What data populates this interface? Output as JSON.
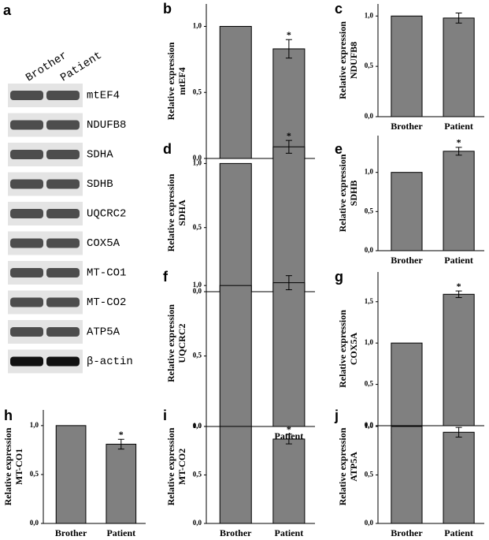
{
  "panel_a": {
    "label": "a",
    "lanes": [
      "Brother",
      "Patient"
    ],
    "bands": [
      "mtEF4",
      "NDUFB8",
      "SDHA",
      "SDHB",
      "UQCRC2",
      "COX5A",
      "MT-CO1",
      "MT-CO2",
      "ATP5A",
      "β-actin"
    ]
  },
  "chart_data": [
    {
      "type": "bar",
      "panel": "b",
      "ylabel": [
        "Relative expression",
        "mtEF4"
      ],
      "categories": [
        "Brother",
        "Patient"
      ],
      "values": [
        1.0,
        0.83
      ],
      "errors": [
        null,
        0.07
      ],
      "annotations": [
        null,
        "*"
      ],
      "color": "#808080",
      "ylim": [
        0,
        1.17
      ],
      "yticks": [
        {
          "value": 0,
          "label": "0,0"
        },
        {
          "value": 0.5,
          "label": "0,5"
        },
        {
          "value": 1,
          "label": "1,0"
        }
      ]
    },
    {
      "type": "bar",
      "panel": "c",
      "ylabel": [
        "Relative expression",
        "NDUFB8"
      ],
      "categories": [
        "Brother",
        "Patient"
      ],
      "values": [
        1.0,
        0.98
      ],
      "errors": [
        null,
        0.05
      ],
      "color": "#808080",
      "ylim": [
        0,
        1.12
      ],
      "yticks": [
        {
          "value": 0,
          "label": "0,0"
        },
        {
          "value": 0.5,
          "label": "0,5"
        },
        {
          "value": 1,
          "label": "1,0"
        }
      ]
    },
    {
      "type": "bar",
      "panel": "d",
      "ylabel": [
        "Relative expression",
        "SDHA"
      ],
      "categories": [
        "Brother",
        "Patient"
      ],
      "values": [
        1.0,
        1.13
      ],
      "errors": [
        null,
        0.05
      ],
      "annotations": [
        null,
        "*"
      ],
      "color": "#808080",
      "ylim": [
        0,
        1.23
      ],
      "yticks": [
        {
          "value": 0,
          "label": "0,0"
        },
        {
          "value": 0.5,
          "label": "0,5"
        },
        {
          "value": 1,
          "label": "1,0"
        }
      ]
    },
    {
      "type": "bar",
      "panel": "e",
      "ylabel": [
        "Relative expression",
        "SDHB"
      ],
      "categories": [
        "Brother",
        "Patient"
      ],
      "values": [
        1.0,
        1.27
      ],
      "errors": [
        null,
        0.05
      ],
      "annotations": [
        null,
        "*"
      ],
      "color": "#808080",
      "ylim": [
        0,
        1.47
      ],
      "yticks": [
        {
          "value": 0,
          "label": "0,0"
        },
        {
          "value": 0.5,
          "label": "0,5"
        },
        {
          "value": 1,
          "label": "1,0"
        }
      ]
    },
    {
      "type": "bar",
      "panel": "f",
      "ylabel": [
        "Relative expression",
        "UQCRC2"
      ],
      "categories": [
        "Brother",
        "Patient"
      ],
      "values": [
        1.0,
        1.02
      ],
      "errors": [
        null,
        0.05
      ],
      "color": "#808080",
      "ylim": [
        0,
        1.18
      ],
      "yticks": [
        {
          "value": 0,
          "label": "0,0"
        },
        {
          "value": 0.5,
          "label": "0,5"
        },
        {
          "value": 1,
          "label": "1,0"
        }
      ]
    },
    {
      "type": "bar",
      "panel": "g",
      "ylabel": [
        "Relative expression",
        "COX5A"
      ],
      "categories": [
        "Brother",
        "Patient"
      ],
      "values": [
        1.0,
        1.59
      ],
      "errors": [
        null,
        0.04
      ],
      "annotations": [
        null,
        "*"
      ],
      "color": "#808080",
      "ylim": [
        0,
        1.86
      ],
      "yticks": [
        {
          "value": 0,
          "label": "0,0"
        },
        {
          "value": 0.5,
          "label": "0,5"
        },
        {
          "value": 1,
          "label": "1,0"
        },
        {
          "value": 1.5,
          "label": "1,5"
        }
      ]
    },
    {
      "type": "bar",
      "panel": "h",
      "ylabel": [
        "Relative expression",
        "MT-CO1"
      ],
      "categories": [
        "Brother",
        "Patient"
      ],
      "values": [
        1.0,
        0.81
      ],
      "errors": [
        null,
        0.05
      ],
      "annotations": [
        null,
        "*"
      ],
      "color": "#808080",
      "ylim": [
        0,
        1.16
      ],
      "yticks": [
        {
          "value": 0,
          "label": "0,0"
        },
        {
          "value": 0.5,
          "label": "0,5"
        },
        {
          "value": 1,
          "label": "1,0"
        }
      ]
    },
    {
      "type": "bar",
      "panel": "i",
      "ylabel": [
        "Relative expression",
        "MT-CO2"
      ],
      "categories": [
        "Brother",
        "Patient"
      ],
      "values": [
        1.0,
        0.87
      ],
      "errors": [
        null,
        0.05
      ],
      "annotations": [
        null,
        "*"
      ],
      "color": "#808080",
      "ylim": [
        0,
        1.17
      ],
      "yticks": [
        {
          "value": 0,
          "label": "0,0"
        },
        {
          "value": 0.5,
          "label": "0,5"
        },
        {
          "value": 1,
          "label": "1,0"
        }
      ]
    },
    {
      "type": "bar",
      "panel": "j",
      "ylabel": [
        "Relative expression",
        "ATP5A"
      ],
      "categories": [
        "Brother",
        "Patient"
      ],
      "values": [
        1.0,
        0.94
      ],
      "errors": [
        null,
        0.05
      ],
      "color": "#808080",
      "ylim": [
        0,
        1.17
      ],
      "yticks": [
        {
          "value": 0,
          "label": "0,0"
        },
        {
          "value": 0.5,
          "label": "0,5"
        },
        {
          "value": 1,
          "label": "1,0"
        }
      ]
    }
  ]
}
